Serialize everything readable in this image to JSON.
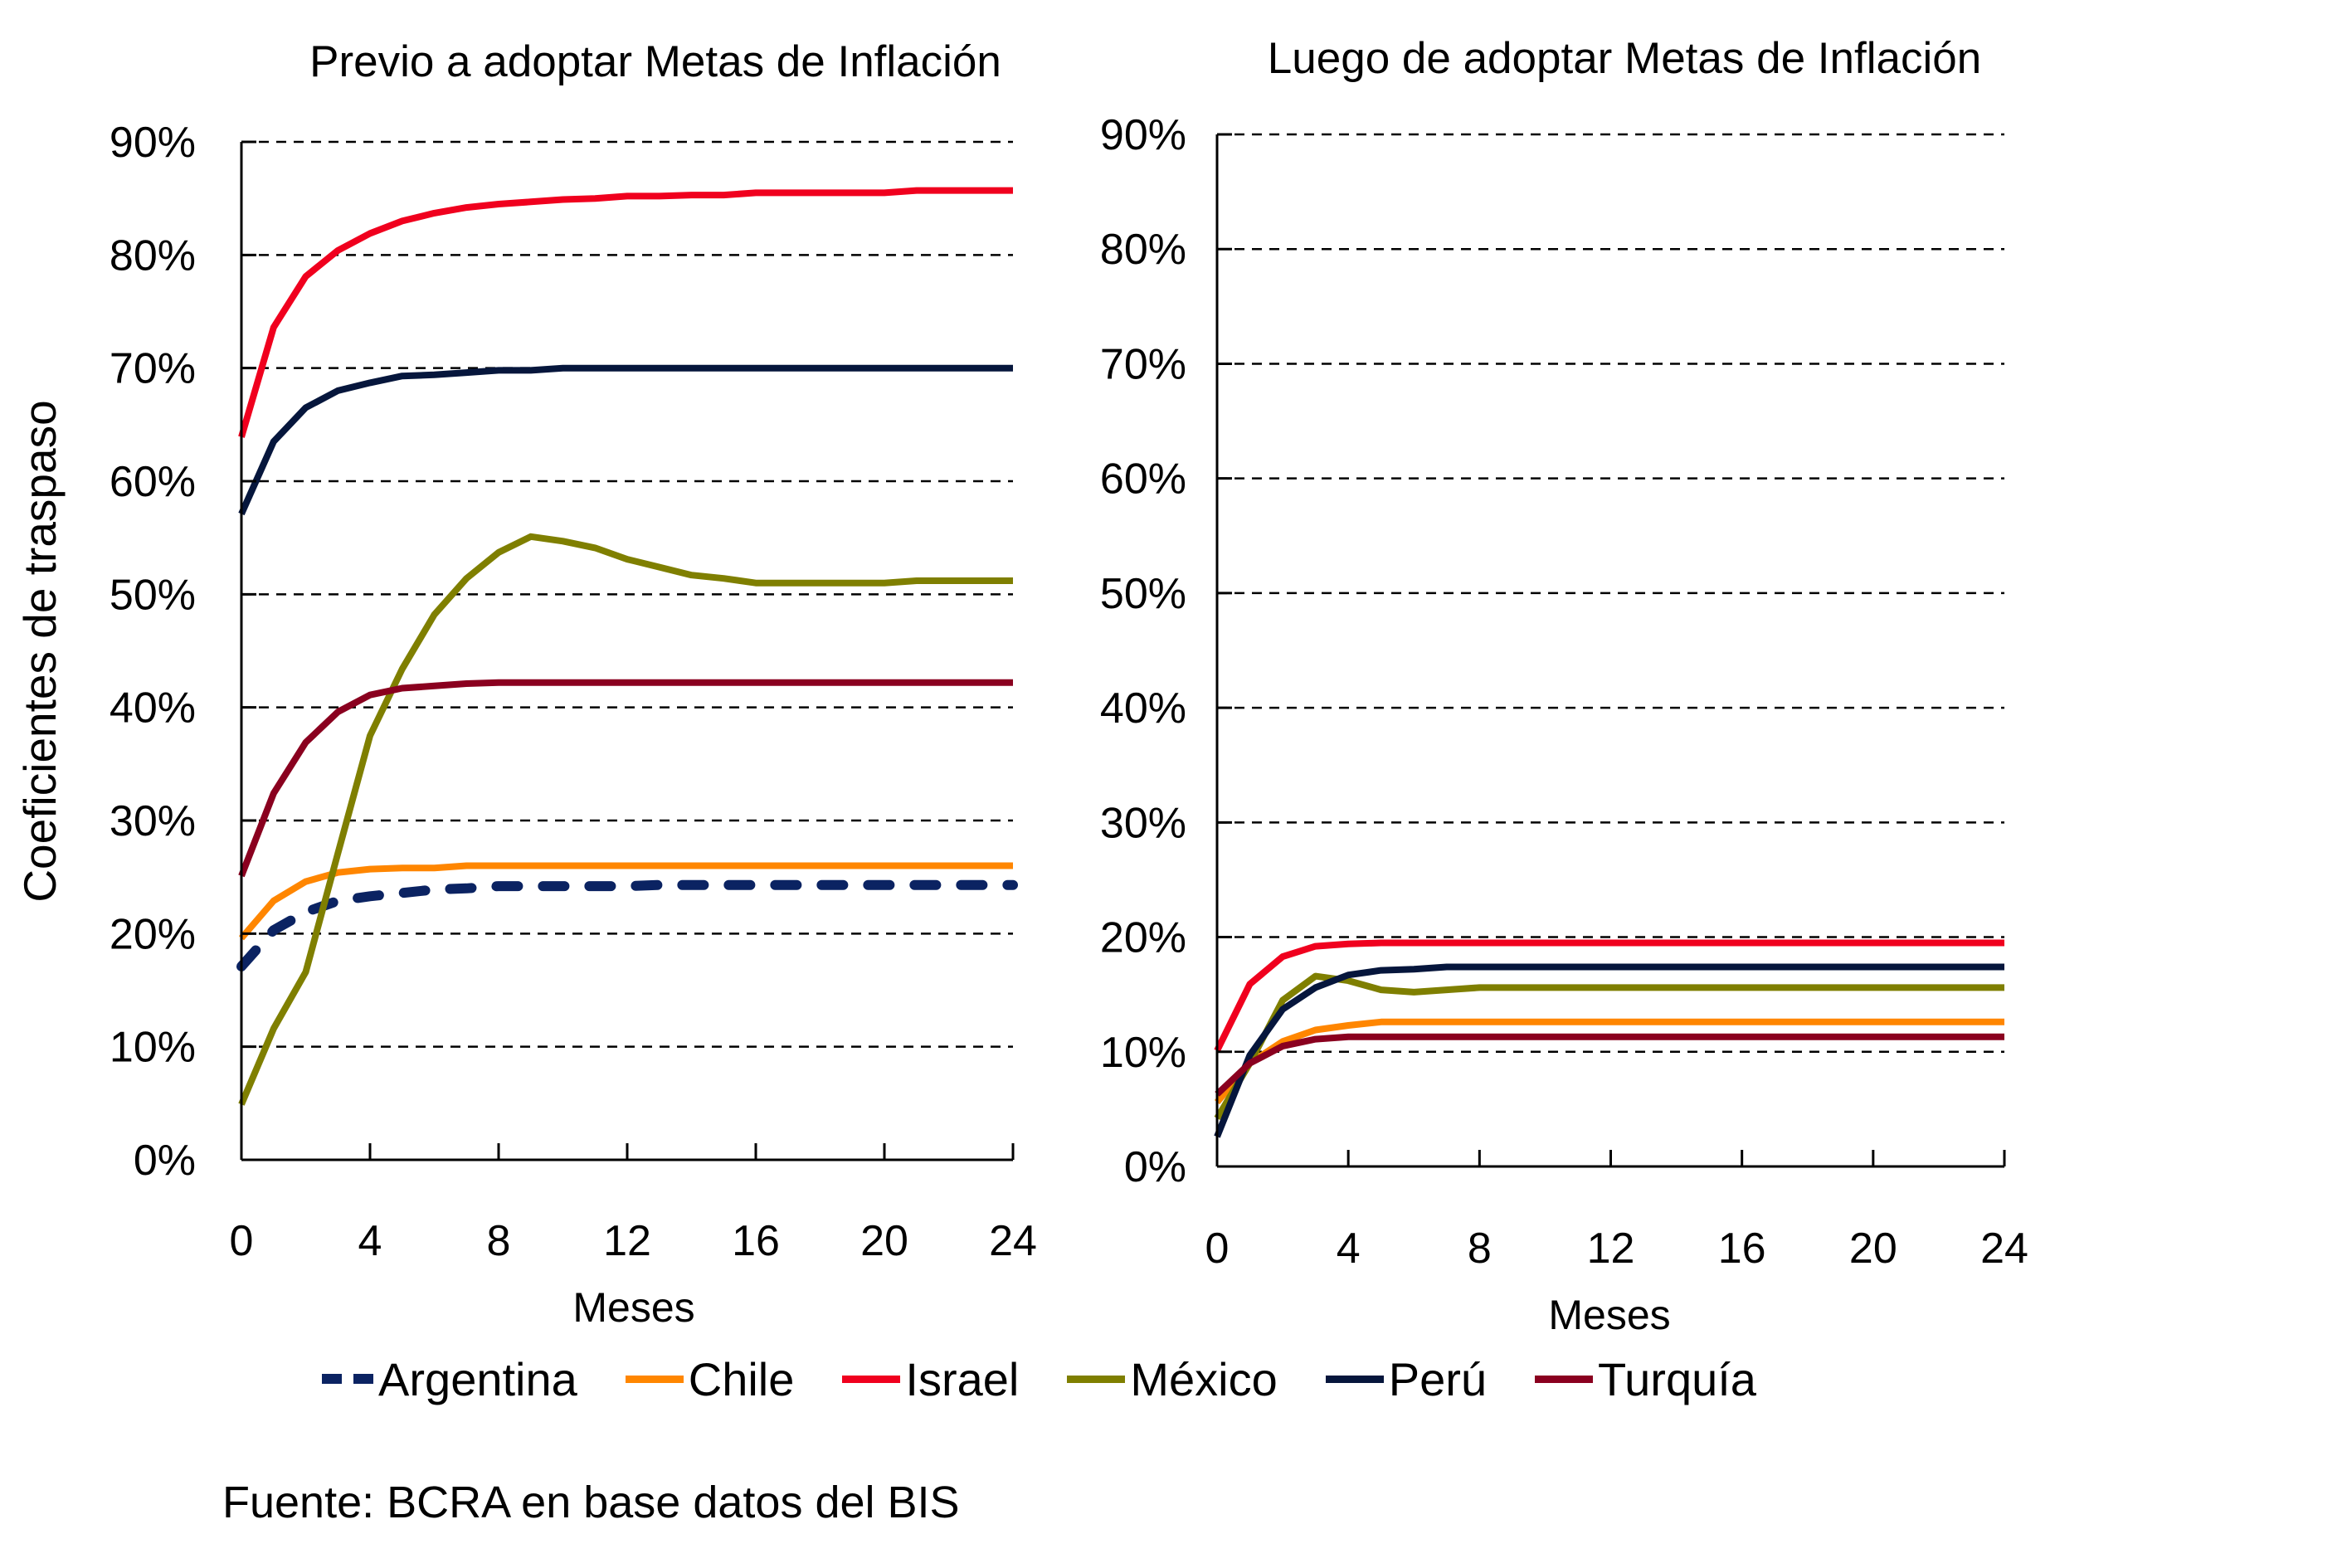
{
  "chart_data": [
    {
      "type": "line",
      "title": "Previo a adoptar Metas de Inflación",
      "xlabel": "Meses",
      "ylabel": "Coeficientes de traspaso",
      "xlim": [
        0,
        24
      ],
      "ylim": [
        0,
        90
      ],
      "x_ticks": [
        0,
        4,
        8,
        12,
        16,
        20,
        24
      ],
      "y_ticks": [
        "0%",
        "10%",
        "20%",
        "30%",
        "40%",
        "50%",
        "60%",
        "70%",
        "80%",
        "90%"
      ],
      "y_tick_values": [
        0,
        10,
        20,
        30,
        40,
        50,
        60,
        70,
        80,
        90
      ],
      "grid": "horizontal dashed",
      "x": [
        0,
        1,
        2,
        3,
        4,
        5,
        6,
        7,
        8,
        9,
        10,
        11,
        12,
        13,
        14,
        15,
        16,
        17,
        18,
        19,
        20,
        21,
        22,
        23,
        24
      ],
      "series": [
        {
          "name": "Argentina",
          "values": [
            17.1,
            20.3,
            21.9,
            22.9,
            23.3,
            23.6,
            23.9,
            24.0,
            24.2,
            24.2,
            24.2,
            24.2,
            24.2,
            24.3,
            24.3,
            24.3,
            24.3,
            24.3,
            24.3,
            24.3,
            24.3,
            24.3,
            24.3,
            24.3,
            24.3
          ]
        },
        {
          "name": "Chile",
          "values": [
            19.6,
            22.9,
            24.6,
            25.4,
            25.7,
            25.8,
            25.8,
            26.0,
            26.0,
            26.0,
            26.0,
            26.0,
            26.0,
            26.0,
            26.0,
            26.0,
            26.0,
            26.0,
            26.0,
            26.0,
            26.0,
            26.0,
            26.0,
            26.0,
            26.0
          ]
        },
        {
          "name": "Israel",
          "values": [
            63.9,
            73.6,
            78.1,
            80.4,
            81.9,
            83.0,
            83.7,
            84.2,
            84.5,
            84.7,
            84.9,
            85.0,
            85.2,
            85.2,
            85.3,
            85.3,
            85.5,
            85.5,
            85.5,
            85.5,
            85.5,
            85.7,
            85.7,
            85.7,
            85.7
          ]
        },
        {
          "name": "México",
          "values": [
            4.9,
            11.6,
            16.6,
            27.1,
            37.5,
            43.4,
            48.2,
            51.4,
            53.7,
            55.1,
            54.7,
            54.1,
            53.1,
            52.4,
            51.7,
            51.4,
            51.0,
            51.0,
            51.0,
            51.0,
            51.0,
            51.2,
            51.2,
            51.2,
            51.2
          ]
        },
        {
          "name": "Perú",
          "values": [
            57.1,
            63.5,
            66.5,
            68.0,
            68.7,
            69.3,
            69.4,
            69.6,
            69.8,
            69.8,
            70.0,
            70.0,
            70.0,
            70.0,
            70.0,
            70.0,
            70.0,
            70.0,
            70.0,
            70.0,
            70.0,
            70.0,
            70.0,
            70.0,
            70.0
          ]
        },
        {
          "name": "Turquía",
          "values": [
            25.1,
            32.4,
            36.9,
            39.6,
            41.1,
            41.7,
            41.9,
            42.1,
            42.2,
            42.2,
            42.2,
            42.2,
            42.2,
            42.2,
            42.2,
            42.2,
            42.2,
            42.2,
            42.2,
            42.2,
            42.2,
            42.2,
            42.2,
            42.2,
            42.2
          ]
        }
      ]
    },
    {
      "type": "line",
      "title": "Luego de adoptar Metas de Inflación",
      "xlabel": "Meses",
      "ylabel": "",
      "xlim": [
        0,
        24
      ],
      "ylim": [
        0,
        90
      ],
      "x_ticks": [
        0,
        4,
        8,
        12,
        16,
        20,
        24
      ],
      "y_ticks": [
        "0%",
        "10%",
        "20%",
        "30%",
        "40%",
        "50%",
        "60%",
        "70%",
        "80%",
        "90%"
      ],
      "y_tick_values": [
        0,
        10,
        20,
        30,
        40,
        50,
        60,
        70,
        80,
        90
      ],
      "grid": "horizontal dashed",
      "x": [
        0,
        1,
        2,
        3,
        4,
        5,
        6,
        7,
        8,
        9,
        10,
        11,
        12,
        13,
        14,
        15,
        16,
        17,
        18,
        19,
        20,
        21,
        22,
        23,
        24
      ],
      "series": [
        {
          "name": "Chile",
          "values": [
            5.6,
            9.0,
            10.9,
            11.9,
            12.3,
            12.6,
            12.6,
            12.6,
            12.6,
            12.6,
            12.6,
            12.6,
            12.6,
            12.6,
            12.6,
            12.6,
            12.6,
            12.6,
            12.6,
            12.6,
            12.6,
            12.6,
            12.6,
            12.6,
            12.6
          ]
        },
        {
          "name": "Israel",
          "values": [
            10.1,
            15.9,
            18.3,
            19.2,
            19.4,
            19.5,
            19.5,
            19.5,
            19.5,
            19.5,
            19.5,
            19.5,
            19.5,
            19.5,
            19.5,
            19.5,
            19.5,
            19.5,
            19.5,
            19.5,
            19.5,
            19.5,
            19.5,
            19.5,
            19.5
          ]
        },
        {
          "name": "México",
          "values": [
            4.2,
            9.0,
            14.5,
            16.6,
            16.2,
            15.4,
            15.2,
            15.4,
            15.6,
            15.6,
            15.6,
            15.6,
            15.6,
            15.6,
            15.6,
            15.6,
            15.6,
            15.6,
            15.6,
            15.6,
            15.6,
            15.6,
            15.6,
            15.6,
            15.6
          ]
        },
        {
          "name": "Perú",
          "values": [
            2.6,
            9.7,
            13.7,
            15.6,
            16.7,
            17.1,
            17.2,
            17.4,
            17.4,
            17.4,
            17.4,
            17.4,
            17.4,
            17.4,
            17.4,
            17.4,
            17.4,
            17.4,
            17.4,
            17.4,
            17.4,
            17.4,
            17.4,
            17.4,
            17.4
          ]
        },
        {
          "name": "Turquía",
          "values": [
            6.3,
            9.0,
            10.5,
            11.1,
            11.3,
            11.3,
            11.3,
            11.3,
            11.3,
            11.3,
            11.3,
            11.3,
            11.3,
            11.3,
            11.3,
            11.3,
            11.3,
            11.3,
            11.3,
            11.3,
            11.3,
            11.3,
            11.3,
            11.3,
            11.3
          ]
        }
      ]
    }
  ],
  "legend": {
    "placement": "bottom",
    "items": [
      {
        "name": "Argentina",
        "color": "#0b2362",
        "style": "dashed"
      },
      {
        "name": "Chile",
        "color": "#ff8600",
        "style": "solid"
      },
      {
        "name": "Israel",
        "color": "#f0001e",
        "style": "solid"
      },
      {
        "name": "México",
        "color": "#7f7f00",
        "style": "solid"
      },
      {
        "name": "Perú",
        "color": "#06163c",
        "style": "solid"
      },
      {
        "name": "Turquía",
        "color": "#8a001f",
        "style": "solid"
      }
    ]
  },
  "footer": "Fuente: BCRA en base datos del BIS"
}
